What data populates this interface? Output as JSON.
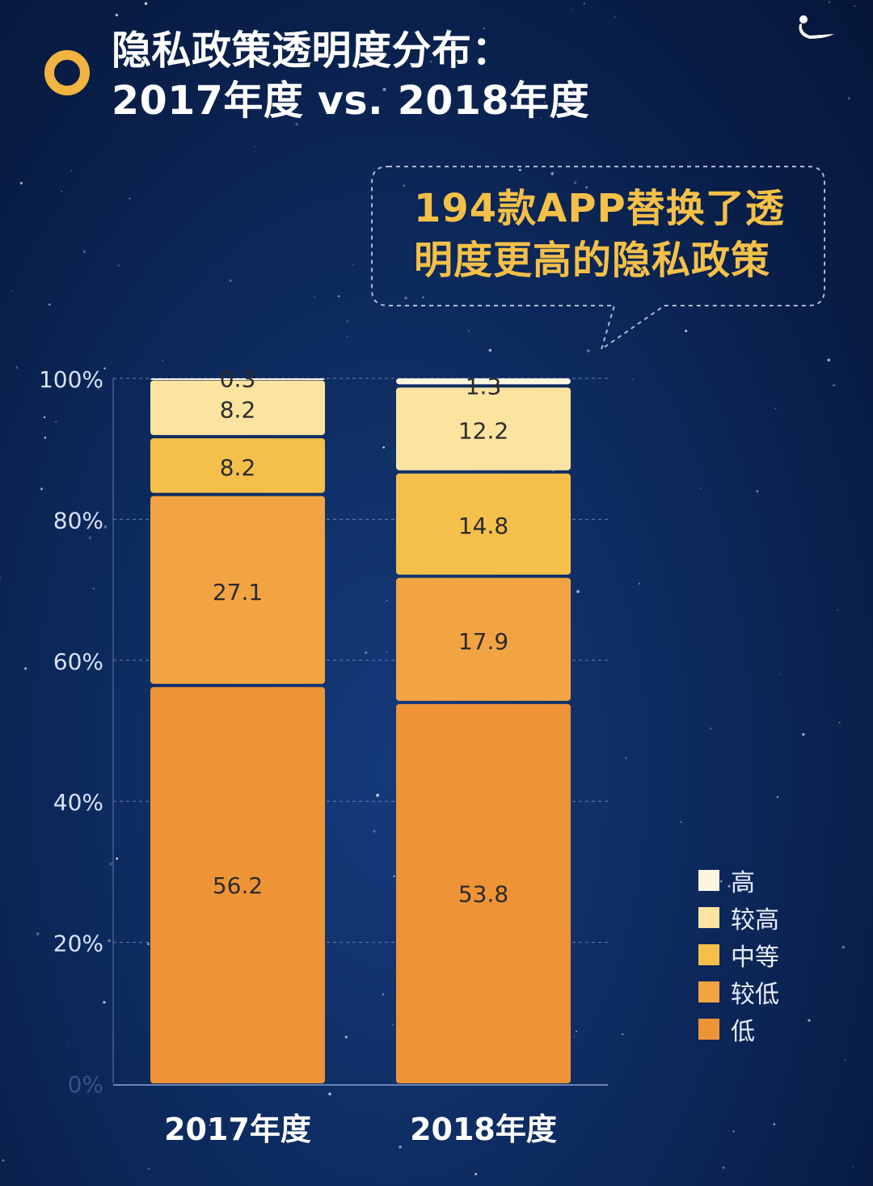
{
  "title": {
    "line1": "隐私政策透明度分布：",
    "line2": "2017年度 vs. 2018年度"
  },
  "callout": {
    "line1": "194款APP替换了透",
    "line2": "明度更高的隐私政策"
  },
  "colors": {
    "accent": "#f2b340",
    "callout_text": "#f4c048",
    "background": "#0d2a5e"
  },
  "chart_data": {
    "type": "bar",
    "stacked": true,
    "categories": [
      "2017年度",
      "2018年度"
    ],
    "ylim": [
      0,
      100
    ],
    "yticks": [
      "0%",
      "20%",
      "40%",
      "60%",
      "80%",
      "100%"
    ],
    "grid": true,
    "legend_position": "right",
    "series": [
      {
        "name": "低",
        "values": [
          56.2,
          53.8
        ],
        "color": "#ee9436"
      },
      {
        "name": "较低",
        "values": [
          27.1,
          17.9
        ],
        "color": "#f2a443"
      },
      {
        "name": "中等",
        "values": [
          8.2,
          14.8
        ],
        "color": "#f4c04a"
      },
      {
        "name": "较高",
        "values": [
          8.2,
          12.2
        ],
        "color": "#fbe3a0"
      },
      {
        "name": "高",
        "values": [
          0.3,
          1.3
        ],
        "color": "#fcf6e0"
      }
    ]
  }
}
